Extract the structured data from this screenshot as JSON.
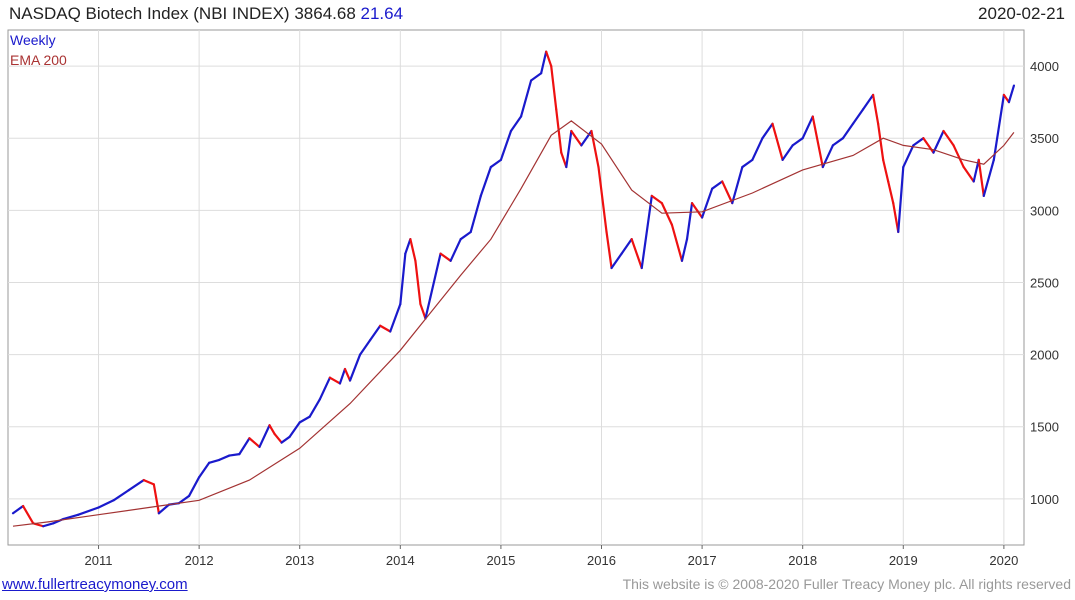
{
  "header": {
    "title": "NASDAQ Biotech Index (NBI INDEX)",
    "last": "3864.68",
    "change": "21.64",
    "date": "2020-02-21"
  },
  "legend": {
    "weekly": "Weekly",
    "ema": "EMA 200"
  },
  "footer": {
    "link": "www.fullertreacymoney.com",
    "copyright": "This website is © 2008-2020 Fuller Treacy Money plc. All rights reserved"
  },
  "colors": {
    "up": "#1a1acc",
    "down": "#ee1111",
    "ema": "#a33333",
    "grid": "#dddddd"
  },
  "chart_data": {
    "type": "line",
    "grid": true,
    "ylim": [
      680,
      4250
    ],
    "xlim": [
      2010.1,
      2020.2
    ],
    "yticks": [
      1000,
      1500,
      2000,
      2500,
      3000,
      3500,
      4000
    ],
    "xticks": [
      {
        "v": 2011,
        "label": "2011"
      },
      {
        "v": 2012,
        "label": "2012"
      },
      {
        "v": 2013,
        "label": "2013"
      },
      {
        "v": 2014,
        "label": "2014"
      },
      {
        "v": 2015,
        "label": "2015"
      },
      {
        "v": 2016,
        "label": "2016"
      },
      {
        "v": 2017,
        "label": "2017"
      },
      {
        "v": 2018,
        "label": "2018"
      },
      {
        "v": 2019,
        "label": "2019"
      },
      {
        "v": 2020,
        "label": "2020"
      }
    ],
    "series": [
      {
        "name": "Weekly",
        "x": [
          2010.15,
          2010.25,
          2010.35,
          2010.45,
          2010.55,
          2010.65,
          2010.8,
          2011.0,
          2011.15,
          2011.3,
          2011.45,
          2011.55,
          2011.6,
          2011.7,
          2011.8,
          2011.9,
          2012.0,
          2012.1,
          2012.2,
          2012.3,
          2012.4,
          2012.5,
          2012.6,
          2012.7,
          2012.75,
          2012.82,
          2012.9,
          2013.0,
          2013.1,
          2013.2,
          2013.3,
          2013.4,
          2013.45,
          2013.5,
          2013.6,
          2013.7,
          2013.8,
          2013.9,
          2014.0,
          2014.05,
          2014.1,
          2014.15,
          2014.2,
          2014.25,
          2014.3,
          2014.4,
          2014.5,
          2014.6,
          2014.7,
          2014.8,
          2014.9,
          2015.0,
          2015.1,
          2015.2,
          2015.3,
          2015.4,
          2015.45,
          2015.5,
          2015.55,
          2015.6,
          2015.65,
          2015.7,
          2015.75,
          2015.8,
          2015.9,
          2015.97,
          2016.05,
          2016.1,
          2016.2,
          2016.3,
          2016.4,
          2016.5,
          2016.6,
          2016.7,
          2016.8,
          2016.85,
          2016.9,
          2017.0,
          2017.1,
          2017.2,
          2017.3,
          2017.4,
          2017.5,
          2017.6,
          2017.7,
          2017.8,
          2017.9,
          2018.0,
          2018.1,
          2018.2,
          2018.3,
          2018.4,
          2018.5,
          2018.6,
          2018.7,
          2018.75,
          2018.8,
          2018.85,
          2018.9,
          2018.95,
          2019.0,
          2019.1,
          2019.2,
          2019.3,
          2019.4,
          2019.5,
          2019.6,
          2019.7,
          2019.75,
          2019.8,
          2019.9,
          2020.0,
          2020.05,
          2020.1
        ],
        "values": [
          900,
          950,
          830,
          810,
          830,
          860,
          890,
          940,
          990,
          1060,
          1130,
          1100,
          900,
          960,
          970,
          1020,
          1150,
          1250,
          1270,
          1300,
          1310,
          1420,
          1360,
          1510,
          1450,
          1390,
          1430,
          1530,
          1570,
          1690,
          1840,
          1800,
          1900,
          1820,
          2000,
          2100,
          2200,
          2160,
          2350,
          2700,
          2800,
          2650,
          2350,
          2250,
          2400,
          2700,
          2650,
          2800,
          2850,
          3100,
          3300,
          3350,
          3550,
          3650,
          3900,
          3950,
          4100,
          4000,
          3700,
          3400,
          3300,
          3550,
          3500,
          3450,
          3550,
          3300,
          2850,
          2600,
          2700,
          2800,
          2600,
          3100,
          3050,
          2900,
          2650,
          2800,
          3050,
          2950,
          3150,
          3200,
          3050,
          3300,
          3350,
          3500,
          3600,
          3350,
          3450,
          3500,
          3650,
          3300,
          3450,
          3500,
          3600,
          3700,
          3800,
          3600,
          3350,
          3200,
          3050,
          2850,
          3300,
          3450,
          3500,
          3400,
          3550,
          3450,
          3300,
          3200,
          3350,
          3100,
          3350,
          3800,
          3750,
          3864.68
        ]
      },
      {
        "name": "EMA 200",
        "x": [
          2010.15,
          2010.5,
          2011.0,
          2011.5,
          2012.0,
          2012.5,
          2013.0,
          2013.5,
          2014.0,
          2014.3,
          2014.6,
          2014.9,
          2015.2,
          2015.5,
          2015.7,
          2016.0,
          2016.3,
          2016.6,
          2017.0,
          2017.5,
          2018.0,
          2018.5,
          2018.8,
          2019.0,
          2019.3,
          2019.6,
          2019.8,
          2020.0,
          2020.1
        ],
        "values": [
          810,
          840,
          890,
          940,
          990,
          1130,
          1350,
          1660,
          2030,
          2290,
          2550,
          2800,
          3150,
          3520,
          3620,
          3460,
          3140,
          2980,
          2990,
          3120,
          3280,
          3380,
          3500,
          3450,
          3420,
          3350,
          3320,
          3450,
          3540
        ]
      }
    ]
  }
}
